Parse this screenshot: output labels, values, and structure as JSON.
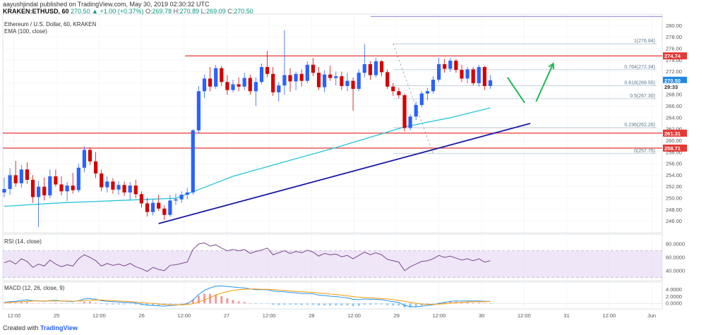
{
  "header": {
    "publisher": "aayushjindal published on TradingView.com, May 30, 2019 02:30:32 UTC",
    "symbol": "KRAKEN:ETHUSD, 60",
    "change": "270.50 ▲ +1.00 (+0.37%)",
    "o_label": "O:",
    "o": "269.78",
    "h_label": "H:",
    "h": "270.89",
    "l_label": "L:",
    "l": "269.09",
    "c_label": "C:",
    "c": "270.50"
  },
  "main_pane": {
    "title": "Ethereum / U.S. Dollar, 60, KRAKEN",
    "indicator": "EMA (100, close)"
  },
  "rsi_pane": {
    "title": "RSI (14, close)"
  },
  "macd_pane": {
    "title": "MACD (12, 26, close, 9)"
  },
  "footer": {
    "prefix": "Created with",
    "brand": "TradingView"
  },
  "colors": {
    "up": "#2962ff",
    "down": "#d50000",
    "ema": "#26c6da",
    "trend": "#1a1aa8",
    "resistance": "#e53935",
    "arrow": "#1db954",
    "fib": "#a0b8c8",
    "rsi_line": "#7b4a8a",
    "rsi_band": "#e8dcf5",
    "macd": "#2196f3",
    "signal": "#ff9800"
  },
  "chart_data": [
    {
      "type": "candlestick",
      "title": "Ethereum / U.S. Dollar, 60, KRAKEN",
      "ylim": [
        244,
        282
      ],
      "price_ticks": [
        246,
        248,
        250,
        252,
        254,
        256,
        258,
        260,
        262,
        264,
        266,
        268,
        270,
        272,
        274,
        276,
        278,
        280
      ],
      "x_ticks": [
        "12:00",
        "25",
        "12:00",
        "26",
        "12:00",
        "27",
        "12:00",
        "28",
        "12:00",
        "29",
        "12:00",
        "30",
        "12:00",
        "31",
        "12:00",
        "Jun"
      ],
      "last_price_labels": [
        "270.50",
        "29:33"
      ],
      "horizontal_levels": [
        {
          "name": "resistance",
          "value": 274.74,
          "label": "274.74"
        },
        {
          "name": "support-1",
          "value": 261.31,
          "label": "261.31"
        },
        {
          "name": "support-2",
          "value": 258.71,
          "label": "258.71"
        },
        {
          "name": "top-line",
          "value": 281.6,
          "label": ""
        }
      ],
      "fibonacci": [
        {
          "level": "1",
          "value": 276.84,
          "label": "1(276.84)"
        },
        {
          "level": "0.764",
          "value": 272.34,
          "label": "0.764(272.34)"
        },
        {
          "level": "0.618",
          "value": 269.55,
          "label": "0.618(269.55)"
        },
        {
          "level": "0.5",
          "value": 267.3,
          "label": "0.5(267.30)"
        },
        {
          "level": "0.236",
          "value": 262.26,
          "label": "0.236(262.26)"
        },
        {
          "level": "0",
          "value": 257.75,
          "label": "0(257.75)"
        }
      ],
      "candles": [
        {
          "o": 251.0,
          "h": 253.6,
          "l": 250.2,
          "c": 251.6
        },
        {
          "o": 251.6,
          "h": 255.2,
          "l": 250.6,
          "c": 254.0
        },
        {
          "o": 254.0,
          "h": 256.5,
          "l": 252.0,
          "c": 252.6
        },
        {
          "o": 252.6,
          "h": 255.8,
          "l": 251.8,
          "c": 255.0
        },
        {
          "o": 255.0,
          "h": 256.2,
          "l": 252.5,
          "c": 253.2
        },
        {
          "o": 253.2,
          "h": 254.0,
          "l": 249.2,
          "c": 250.2
        },
        {
          "o": 250.2,
          "h": 253.0,
          "l": 245.0,
          "c": 252.0
        },
        {
          "o": 252.0,
          "h": 253.6,
          "l": 249.6,
          "c": 250.5
        },
        {
          "o": 250.5,
          "h": 255.0,
          "l": 250.0,
          "c": 253.8
        },
        {
          "o": 253.8,
          "h": 255.0,
          "l": 252.0,
          "c": 252.4
        },
        {
          "o": 252.4,
          "h": 253.8,
          "l": 250.5,
          "c": 251.2
        },
        {
          "o": 251.2,
          "h": 252.8,
          "l": 249.5,
          "c": 252.2
        },
        {
          "o": 252.2,
          "h": 254.4,
          "l": 250.8,
          "c": 251.4
        },
        {
          "o": 251.4,
          "h": 256.0,
          "l": 251.0,
          "c": 255.3
        },
        {
          "o": 255.3,
          "h": 259.0,
          "l": 254.5,
          "c": 258.4
        },
        {
          "o": 258.4,
          "h": 258.8,
          "l": 255.8,
          "c": 256.4
        },
        {
          "o": 256.4,
          "h": 258.0,
          "l": 253.5,
          "c": 254.3
        },
        {
          "o": 254.3,
          "h": 255.0,
          "l": 251.2,
          "c": 251.9
        },
        {
          "o": 251.9,
          "h": 253.8,
          "l": 251.0,
          "c": 252.9
        },
        {
          "o": 252.9,
          "h": 253.5,
          "l": 250.8,
          "c": 251.5
        },
        {
          "o": 251.5,
          "h": 253.0,
          "l": 250.6,
          "c": 252.3
        },
        {
          "o": 252.3,
          "h": 252.9,
          "l": 250.4,
          "c": 251.0
        },
        {
          "o": 251.0,
          "h": 252.8,
          "l": 249.7,
          "c": 252.2
        },
        {
          "o": 252.2,
          "h": 253.2,
          "l": 250.0,
          "c": 250.7
        },
        {
          "o": 250.7,
          "h": 251.2,
          "l": 248.4,
          "c": 249.1
        },
        {
          "o": 249.1,
          "h": 250.0,
          "l": 246.8,
          "c": 247.6
        },
        {
          "o": 247.6,
          "h": 249.8,
          "l": 247.0,
          "c": 249.2
        },
        {
          "o": 249.2,
          "h": 250.6,
          "l": 247.8,
          "c": 248.2
        },
        {
          "o": 248.2,
          "h": 248.8,
          "l": 246.2,
          "c": 247.1
        },
        {
          "o": 247.1,
          "h": 250.6,
          "l": 246.8,
          "c": 249.6
        },
        {
          "o": 249.6,
          "h": 250.8,
          "l": 248.8,
          "c": 249.8
        },
        {
          "o": 249.8,
          "h": 251.2,
          "l": 249.2,
          "c": 250.6
        },
        {
          "o": 250.6,
          "h": 251.8,
          "l": 249.8,
          "c": 251.0
        },
        {
          "o": 251.0,
          "h": 262.0,
          "l": 250.6,
          "c": 261.8
        },
        {
          "o": 261.8,
          "h": 269.5,
          "l": 261.2,
          "c": 268.6
        },
        {
          "o": 268.6,
          "h": 271.5,
          "l": 267.4,
          "c": 270.8
        },
        {
          "o": 270.8,
          "h": 272.8,
          "l": 268.6,
          "c": 269.4
        },
        {
          "o": 269.4,
          "h": 273.2,
          "l": 269.0,
          "c": 272.6
        },
        {
          "o": 272.6,
          "h": 273.0,
          "l": 269.5,
          "c": 270.2
        },
        {
          "o": 270.2,
          "h": 271.4,
          "l": 268.0,
          "c": 268.8
        },
        {
          "o": 268.8,
          "h": 270.6,
          "l": 268.4,
          "c": 269.8
        },
        {
          "o": 269.8,
          "h": 271.0,
          "l": 268.6,
          "c": 269.4
        },
        {
          "o": 269.4,
          "h": 271.8,
          "l": 268.8,
          "c": 270.9
        },
        {
          "o": 270.9,
          "h": 271.5,
          "l": 268.0,
          "c": 268.6
        },
        {
          "o": 268.6,
          "h": 271.0,
          "l": 266.0,
          "c": 270.2
        },
        {
          "o": 270.2,
          "h": 273.4,
          "l": 269.8,
          "c": 272.8
        },
        {
          "o": 272.8,
          "h": 275.6,
          "l": 271.0,
          "c": 271.6
        },
        {
          "o": 271.6,
          "h": 272.8,
          "l": 267.8,
          "c": 268.4
        },
        {
          "o": 268.4,
          "h": 270.2,
          "l": 266.8,
          "c": 269.6
        },
        {
          "o": 269.6,
          "h": 279.2,
          "l": 268.0,
          "c": 271.4
        },
        {
          "o": 271.4,
          "h": 272.6,
          "l": 268.5,
          "c": 270.3
        },
        {
          "o": 270.3,
          "h": 272.0,
          "l": 268.8,
          "c": 271.6
        },
        {
          "o": 271.6,
          "h": 272.4,
          "l": 269.4,
          "c": 270.4
        },
        {
          "o": 270.4,
          "h": 273.8,
          "l": 270.0,
          "c": 273.2
        },
        {
          "o": 273.2,
          "h": 274.4,
          "l": 271.2,
          "c": 271.8
        },
        {
          "o": 271.8,
          "h": 272.8,
          "l": 268.8,
          "c": 269.3
        },
        {
          "o": 269.3,
          "h": 272.2,
          "l": 268.4,
          "c": 271.5
        },
        {
          "o": 271.5,
          "h": 273.0,
          "l": 270.4,
          "c": 270.9
        },
        {
          "o": 270.9,
          "h": 272.0,
          "l": 269.6,
          "c": 271.2
        },
        {
          "o": 271.2,
          "h": 272.0,
          "l": 268.8,
          "c": 269.5
        },
        {
          "o": 269.5,
          "h": 271.8,
          "l": 268.6,
          "c": 270.4
        },
        {
          "o": 270.4,
          "h": 271.0,
          "l": 265.2,
          "c": 269.0
        },
        {
          "o": 269.0,
          "h": 272.4,
          "l": 268.6,
          "c": 271.8
        },
        {
          "o": 271.8,
          "h": 276.8,
          "l": 271.0,
          "c": 273.3
        },
        {
          "o": 273.3,
          "h": 273.8,
          "l": 270.6,
          "c": 271.4
        },
        {
          "o": 271.4,
          "h": 274.4,
          "l": 271.0,
          "c": 273.8
        },
        {
          "o": 273.8,
          "h": 274.0,
          "l": 271.2,
          "c": 271.9
        },
        {
          "o": 271.9,
          "h": 272.4,
          "l": 269.0,
          "c": 269.4
        },
        {
          "o": 269.4,
          "h": 270.0,
          "l": 267.8,
          "c": 268.6
        },
        {
          "o": 268.6,
          "h": 269.2,
          "l": 267.4,
          "c": 267.9
        },
        {
          "o": 267.9,
          "h": 268.2,
          "l": 261.6,
          "c": 262.2
        },
        {
          "o": 262.2,
          "h": 264.6,
          "l": 261.8,
          "c": 264.2
        },
        {
          "o": 264.2,
          "h": 266.8,
          "l": 263.6,
          "c": 266.2
        },
        {
          "o": 266.2,
          "h": 268.6,
          "l": 265.8,
          "c": 268.2
        },
        {
          "o": 268.2,
          "h": 269.2,
          "l": 267.0,
          "c": 268.6
        },
        {
          "o": 268.6,
          "h": 271.2,
          "l": 268.2,
          "c": 270.6
        },
        {
          "o": 270.6,
          "h": 274.4,
          "l": 270.2,
          "c": 273.3
        },
        {
          "o": 273.3,
          "h": 274.2,
          "l": 271.8,
          "c": 272.5
        },
        {
          "o": 272.5,
          "h": 274.4,
          "l": 272.0,
          "c": 273.9
        },
        {
          "o": 273.9,
          "h": 274.2,
          "l": 271.8,
          "c": 272.3
        },
        {
          "o": 272.3,
          "h": 273.2,
          "l": 270.2,
          "c": 270.8
        },
        {
          "o": 270.8,
          "h": 272.8,
          "l": 270.0,
          "c": 272.4
        },
        {
          "o": 272.4,
          "h": 272.8,
          "l": 269.6,
          "c": 270.0
        },
        {
          "o": 270.0,
          "h": 273.2,
          "l": 269.4,
          "c": 272.8
        },
        {
          "o": 272.8,
          "h": 273.0,
          "l": 268.8,
          "c": 269.5
        },
        {
          "o": 269.5,
          "h": 271.4,
          "l": 269.0,
          "c": 270.5
        }
      ],
      "ema_100": [
        {
          "i": 0,
          "v": 248.6
        },
        {
          "i": 10,
          "v": 249.2
        },
        {
          "i": 20,
          "v": 249.6
        },
        {
          "i": 30,
          "v": 250.0
        },
        {
          "i": 34,
          "v": 251.5
        },
        {
          "i": 40,
          "v": 253.8
        },
        {
          "i": 50,
          "v": 256.6
        },
        {
          "i": 58,
          "v": 258.8
        },
        {
          "i": 64,
          "v": 260.6
        },
        {
          "i": 70,
          "v": 262.4
        },
        {
          "i": 78,
          "v": 264.0
        },
        {
          "i": 85,
          "v": 265.7
        }
      ],
      "trendline": {
        "from": {
          "i": 27,
          "v": 245.6
        },
        "to": {
          "i": 92,
          "v": 263.0
        }
      },
      "fib_anchor": {
        "from": {
          "i": 68,
          "v": 276.84
        },
        "to": {
          "i": 75,
          "v": 257.75
        }
      },
      "projection_arrows": [
        {
          "from": {
            "i": 88,
            "v": 271.0
          },
          "to": {
            "i": 91,
            "v": 266.6
          }
        },
        {
          "from": {
            "i": 93,
            "v": 266.8
          },
          "to": {
            "i": 96,
            "v": 273.4
          }
        }
      ]
    },
    {
      "type": "line",
      "title": "RSI (14, close)",
      "ylim": [
        25,
        95
      ],
      "band": [
        30,
        70
      ],
      "ticks": [
        {
          "value": 80,
          "label": "80.0000"
        },
        {
          "value": 60,
          "label": "60.0000"
        },
        {
          "value": 40,
          "label": "40.0000"
        }
      ],
      "values": [
        52,
        55,
        50,
        58,
        54,
        45,
        50,
        47,
        56,
        50,
        46,
        49,
        47,
        58,
        64,
        60,
        55,
        47,
        51,
        48,
        50,
        47,
        51,
        46,
        43,
        39,
        45,
        42,
        40,
        48,
        49,
        51,
        53,
        72,
        80,
        82,
        77,
        79,
        74,
        70,
        72,
        70,
        72,
        66,
        69,
        71,
        74,
        64,
        67,
        70,
        66,
        69,
        67,
        71,
        68,
        62,
        66,
        64,
        65,
        61,
        63,
        58,
        63,
        68,
        64,
        67,
        64,
        57,
        55,
        53,
        40,
        46,
        50,
        54,
        55,
        58,
        63,
        60,
        62,
        59,
        56,
        58,
        55,
        58,
        53,
        55
      ]
    },
    {
      "type": "line",
      "title": "MACD (12, 26, close, 9)",
      "ylim": [
        -1.6,
        6.2
      ],
      "ticks": [
        {
          "value": 4,
          "label": "4.0000"
        },
        {
          "value": 2,
          "label": "2.0000"
        },
        {
          "value": 0,
          "label": "0.0000"
        }
      ],
      "series": [
        {
          "name": "MACD",
          "values": [
            0.3,
            0.5,
            0.6,
            0.9,
            1.0,
            0.8,
            0.7,
            0.6,
            0.8,
            0.9,
            0.7,
            0.6,
            0.5,
            0.8,
            1.3,
            1.4,
            1.2,
            0.8,
            0.6,
            0.5,
            0.4,
            0.3,
            0.3,
            0.1,
            -0.2,
            -0.5,
            -0.6,
            -0.7,
            -0.8,
            -0.6,
            -0.5,
            -0.3,
            -0.1,
            1.0,
            2.6,
            3.8,
            4.5,
            5.0,
            5.1,
            4.9,
            4.8,
            4.6,
            4.5,
            4.2,
            4.0,
            4.0,
            4.0,
            3.6,
            3.4,
            3.4,
            3.2,
            3.1,
            2.9,
            2.9,
            2.8,
            2.4,
            2.3,
            2.1,
            2.0,
            1.8,
            1.6,
            1.2,
            1.1,
            1.3,
            1.2,
            1.2,
            1.1,
            0.8,
            0.5,
            0.3,
            -0.6,
            -0.9,
            -1.0,
            -0.8,
            -0.6,
            -0.4,
            0.0,
            0.3,
            0.6,
            0.7,
            0.7,
            0.7,
            0.7,
            0.7,
            0.6,
            0.6
          ]
        },
        {
          "name": "Signal",
          "values": [
            0.2,
            0.3,
            0.4,
            0.5,
            0.6,
            0.7,
            0.7,
            0.7,
            0.7,
            0.7,
            0.7,
            0.7,
            0.6,
            0.7,
            0.8,
            0.9,
            1.0,
            1.0,
            0.9,
            0.8,
            0.7,
            0.6,
            0.5,
            0.4,
            0.3,
            0.1,
            0.0,
            -0.2,
            -0.3,
            -0.4,
            -0.4,
            -0.4,
            -0.3,
            -0.1,
            0.4,
            1.0,
            1.7,
            2.4,
            3.0,
            3.4,
            3.8,
            4.0,
            4.1,
            4.2,
            4.2,
            4.1,
            4.1,
            4.0,
            3.9,
            3.8,
            3.6,
            3.5,
            3.4,
            3.3,
            3.2,
            3.0,
            2.9,
            2.7,
            2.6,
            2.4,
            2.2,
            2.0,
            1.8,
            1.7,
            1.6,
            1.5,
            1.4,
            1.3,
            1.1,
            0.9,
            0.6,
            0.3,
            0.0,
            -0.2,
            -0.3,
            -0.3,
            -0.2,
            -0.1,
            0.1,
            0.2,
            0.3,
            0.4,
            0.5,
            0.5,
            0.5,
            0.6
          ]
        }
      ]
    }
  ]
}
